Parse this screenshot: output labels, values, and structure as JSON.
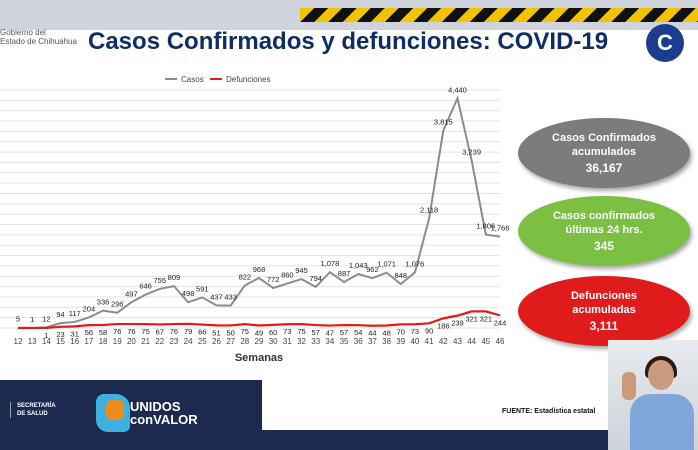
{
  "header": {
    "title": "Casos Confirmados y defunciones: COVID-19",
    "gov_line1": "Gobierno del",
    "gov_line2": "Estado de Chihuahua"
  },
  "summary": {
    "acumulados": {
      "label_line1": "Casos Confirmados",
      "label_line2": "acumulados",
      "value": "36,167",
      "color": "#7c7c7c"
    },
    "ultimas": {
      "label_line1": "Casos confirmados",
      "label_line2": "últimas 24 hrs.",
      "value": "345",
      "color": "#7bc043"
    },
    "defunciones": {
      "label_line1": "Defunciones",
      "label_line2": "acumuladas",
      "value": "3,111",
      "color": "#e01b1b"
    }
  },
  "footer": {
    "secretaria_line1": "SECRETARÍA",
    "secretaria_line2": "DE SALUD",
    "brand_line1": "UNIDOS",
    "brand_line2": "conVALOR",
    "fuente": "FUENTE: Estadística estatal"
  },
  "chart_data": {
    "type": "line",
    "xlabel": "Semanas",
    "ylabel": "",
    "x": [
      12,
      13,
      14,
      15,
      16,
      17,
      18,
      19,
      20,
      21,
      22,
      23,
      24,
      25,
      26,
      27,
      28,
      29,
      30,
      31,
      32,
      33,
      34,
      35,
      36,
      37,
      38,
      39,
      40,
      41,
      42,
      43,
      44,
      45,
      46
    ],
    "series": [
      {
        "name": "Casos",
        "color": "#8c8c8c",
        "values": [
          5,
          1,
          12,
          94,
          117,
          204,
          336,
          296,
          497,
          646,
          755,
          809,
          498,
          591,
          437,
          433,
          822,
          968,
          772,
          860,
          945,
          794,
          1078,
          887,
          1043,
          962,
          1071,
          848,
          1076,
          2118,
          3815,
          4440,
          3239,
          1806,
          1766
        ]
      },
      {
        "name": "Defunciones",
        "color": "#e01b1b",
        "values": [
          0,
          0,
          1,
          23,
          31,
          56,
          58,
          76,
          76,
          75,
          67,
          76,
          79,
          66,
          51,
          50,
          75,
          49,
          60,
          73,
          75,
          57,
          47,
          57,
          54,
          44,
          48,
          70,
          73,
          90,
          186,
          239,
          321,
          321,
          244
        ]
      }
    ],
    "point_labels": {
      "Casos": [
        "5",
        "1",
        "12",
        "94",
        "117",
        "204",
        "336",
        "296",
        "497",
        "646",
        "755",
        "809",
        "498",
        "591",
        "437",
        "433",
        "822",
        "968",
        "772",
        "860",
        "945",
        "794",
        "1,078",
        "887",
        "1,043",
        "962",
        "1,071",
        "848",
        "1,076",
        "2,118",
        "3,815",
        "4,440",
        "3,239",
        "1,806",
        "1,766"
      ],
      "Defunciones": [
        "",
        "",
        "1",
        "23",
        "31",
        "56",
        "58",
        "76",
        "76",
        "75",
        "67",
        "76",
        "79",
        "66",
        "51",
        "50",
        "75",
        "49",
        "60",
        "73",
        "75",
        "57",
        "47",
        "57",
        "54",
        "44",
        "48",
        "70",
        "73",
        "90",
        "186",
        "239",
        "321",
        "321",
        "244"
      ]
    },
    "ylim": [
      0,
      4600
    ],
    "grid": true,
    "legend_position": "top-left"
  }
}
